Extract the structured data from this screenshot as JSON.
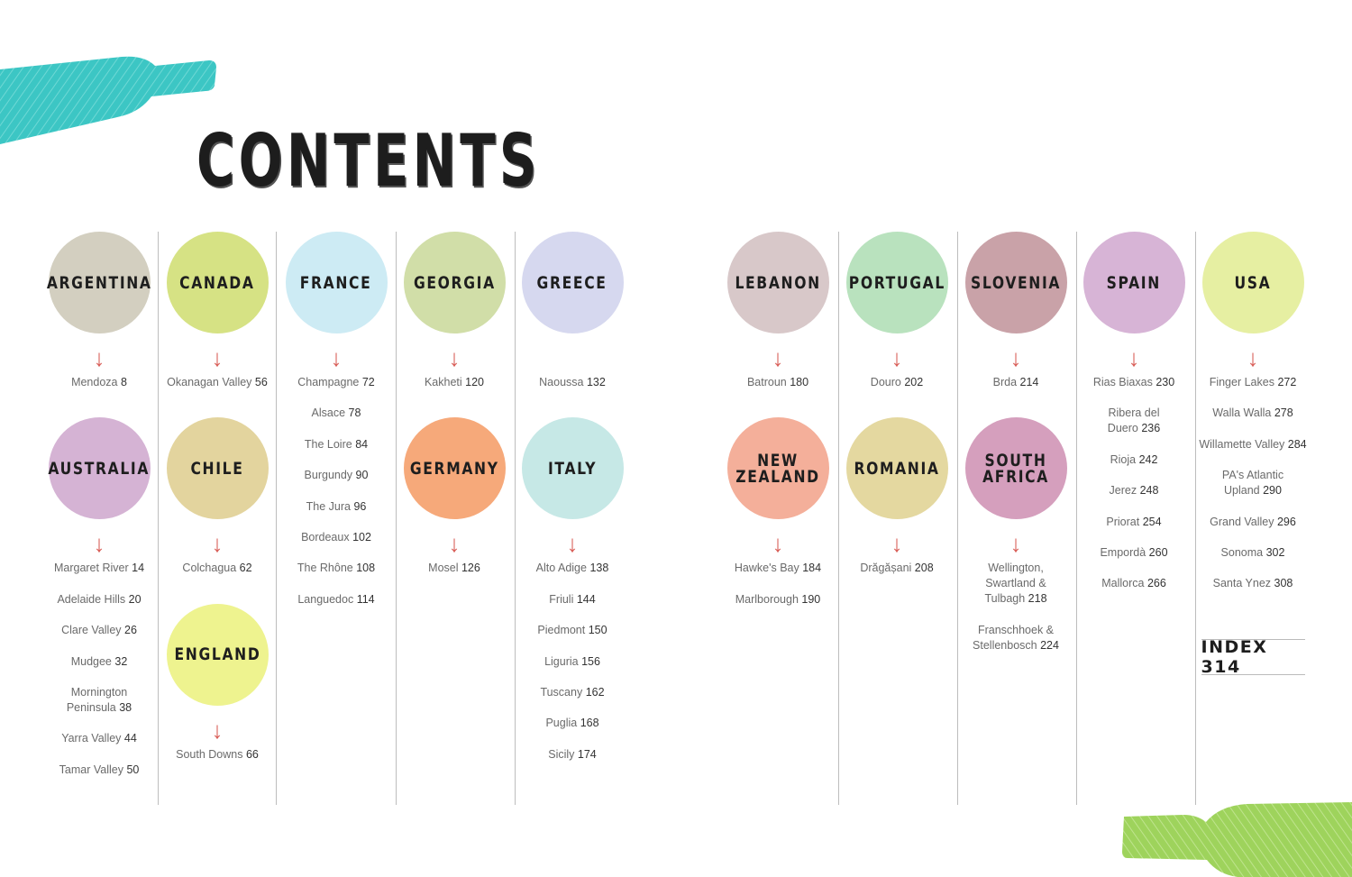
{
  "title": "CONTENTS",
  "colors": {
    "arrow": "#d9605a",
    "bottle_top": "#3cc6c4",
    "bottle_bottom": "#9ed35c"
  },
  "columns": [
    {
      "sections": [
        {
          "country": "ARGENTINA",
          "color": "#d3cfc0",
          "arrow": true,
          "items": [
            {
              "name": "Mendoza",
              "page": "8"
            }
          ]
        },
        {
          "country": "AUSTRALIA",
          "color": "#d5b3d4",
          "arrow": true,
          "items": [
            {
              "name": "Margaret River",
              "page": "14"
            },
            {
              "name": "Adelaide Hills",
              "page": "20"
            },
            {
              "name": "Clare Valley",
              "page": "26"
            },
            {
              "name": "Mudgee",
              "page": "32"
            },
            {
              "name": "Mornington\nPeninsula",
              "page": "38"
            },
            {
              "name": "Yarra Valley",
              "page": "44"
            },
            {
              "name": "Tamar Valley",
              "page": "50"
            }
          ]
        }
      ]
    },
    {
      "sections": [
        {
          "country": "CANADA",
          "color": "#d6e284",
          "arrow": true,
          "items": [
            {
              "name": "Okanagan Valley",
              "page": "56"
            }
          ]
        },
        {
          "country": "CHILE",
          "color": "#e3d49e",
          "arrow": true,
          "items": [
            {
              "name": "Colchagua",
              "page": "62"
            }
          ]
        },
        {
          "country": "ENGLAND",
          "color": "#eef38f",
          "arrow": true,
          "items": [
            {
              "name": "South Downs",
              "page": "66"
            }
          ]
        }
      ]
    },
    {
      "sections": [
        {
          "country": "FRANCE",
          "color": "#cdebf4",
          "arrow": true,
          "items": [
            {
              "name": "Champagne",
              "page": "72"
            },
            {
              "name": "Alsace",
              "page": "78"
            },
            {
              "name": "The Loire",
              "page": "84"
            },
            {
              "name": "Burgundy",
              "page": "90"
            },
            {
              "name": "The Jura",
              "page": "96"
            },
            {
              "name": "Bordeaux",
              "page": "102"
            },
            {
              "name": "The Rhône",
              "page": "108"
            },
            {
              "name": "Languedoc",
              "page": "114"
            }
          ]
        }
      ]
    },
    {
      "sections": [
        {
          "country": "GEORGIA",
          "color": "#d1dea8",
          "arrow": true,
          "items": [
            {
              "name": "Kakheti",
              "page": "120"
            }
          ]
        },
        {
          "country": "GERMANY",
          "color": "#f6a97a",
          "arrow": true,
          "items": [
            {
              "name": "Mosel",
              "page": "126"
            }
          ]
        }
      ]
    },
    {
      "sections": [
        {
          "country": "GREECE",
          "color": "#d6d8ef",
          "arrow": false,
          "items": [
            {
              "name": "Naoussa",
              "page": "132"
            }
          ]
        },
        {
          "country": "ITALY",
          "color": "#c6e8e6",
          "arrow": true,
          "items": [
            {
              "name": "Alto Adige",
              "page": "138"
            },
            {
              "name": "Friuli",
              "page": "144"
            },
            {
              "name": "Piedmont",
              "page": "150"
            },
            {
              "name": "Liguria",
              "page": "156"
            },
            {
              "name": "Tuscany",
              "page": "162"
            },
            {
              "name": "Puglia",
              "page": "168"
            },
            {
              "name": "Sicily",
              "page": "174"
            }
          ]
        }
      ]
    },
    {
      "sections": [
        {
          "country": "LEBANON",
          "color": "#d8c8c9",
          "arrow": true,
          "items": [
            {
              "name": "Batroun",
              "page": "180"
            }
          ]
        },
        {
          "country": "NEW\nZEALAND",
          "color": "#f4af9a",
          "arrow": true,
          "items": [
            {
              "name": "Hawke's Bay",
              "page": "184"
            },
            {
              "name": "Marlborough",
              "page": "190"
            }
          ]
        }
      ]
    },
    {
      "sections": [
        {
          "country": "PORTUGAL",
          "color": "#b9e2be",
          "arrow": true,
          "items": [
            {
              "name": "Douro",
              "page": "202"
            }
          ]
        },
        {
          "country": "ROMANIA",
          "color": "#e4d8a0",
          "arrow": true,
          "items": [
            {
              "name": "Drăgășani",
              "page": "208"
            }
          ]
        }
      ]
    },
    {
      "sections": [
        {
          "country": "SLOVENIA",
          "color": "#c9a2a8",
          "arrow": true,
          "items": [
            {
              "name": "Brda",
              "page": "214"
            }
          ]
        },
        {
          "country": "SOUTH\nAFRICA",
          "color": "#d59fbd",
          "arrow": true,
          "items": [
            {
              "name": "Wellington,\nSwartland &\nTulbagh",
              "page": "218"
            },
            {
              "name": "Franschhoek &\nStellenbosch",
              "page": "224"
            }
          ]
        }
      ]
    },
    {
      "sections": [
        {
          "country": "SPAIN",
          "color": "#d7b4d6",
          "arrow": true,
          "items": [
            {
              "name": "Rias Biaxas",
              "page": "230"
            },
            {
              "name": "Ribera del\nDuero",
              "page": "236"
            },
            {
              "name": "Rioja",
              "page": "242"
            },
            {
              "name": "Jerez",
              "page": "248"
            },
            {
              "name": "Priorat",
              "page": "254"
            },
            {
              "name": "Empordà",
              "page": "260"
            },
            {
              "name": "Mallorca",
              "page": "266"
            }
          ]
        }
      ]
    },
    {
      "sections": [
        {
          "country": "USA",
          "color": "#e6efa2",
          "arrow": true,
          "items": [
            {
              "name": "Finger Lakes",
              "page": "272"
            },
            {
              "name": "Walla Walla",
              "page": "278"
            },
            {
              "name": "Willamette Valley",
              "page": "284"
            },
            {
              "name": "PA's Atlantic\nUpland",
              "page": "290"
            },
            {
              "name": "Grand Valley",
              "page": "296"
            },
            {
              "name": "Sonoma",
              "page": "302"
            },
            {
              "name": "Santa Ynez ",
              "page": "308"
            }
          ]
        }
      ],
      "index": "INDEX 314"
    }
  ]
}
